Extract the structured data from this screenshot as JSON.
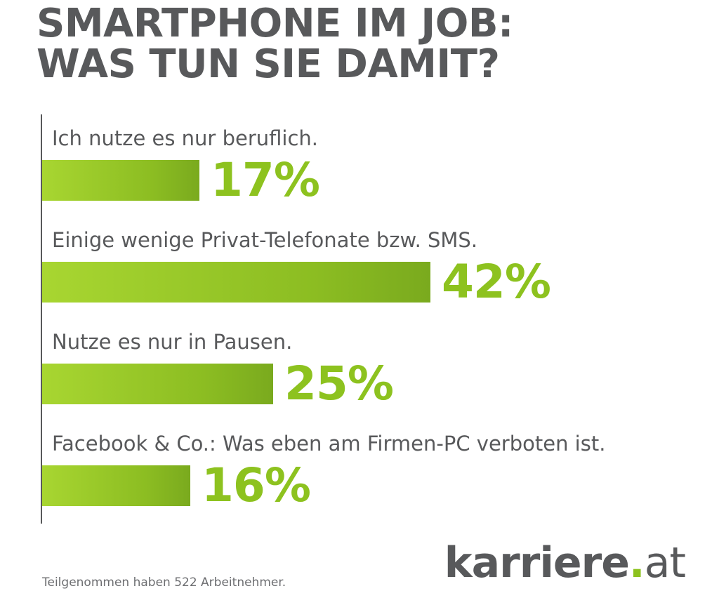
{
  "title_lines": [
    "SMARTPHONE IM JOB:",
    "WAS TUN SIE DAMIT?"
  ],
  "footnote": "Teilgenommen haben 522 Arbeitnehmer.",
  "brand": {
    "name": "karriere",
    "dot": ".",
    "tld": "at"
  },
  "colors": {
    "bar": "#8dc21f",
    "bar_light": "#a8d631",
    "text": "#58595b",
    "percent": "#8dc21f"
  },
  "chart_data": {
    "type": "bar",
    "orientation": "horizontal",
    "title": "SMARTPHONE IM JOB: WAS TUN SIE DAMIT?",
    "xlabel": "",
    "ylabel": "",
    "grid": false,
    "legend": "none",
    "xlim": [
      0,
      42
    ],
    "unit": "%",
    "categories": [
      "Ich nutze es nur beruflich.",
      "Einige wenige Privat-Telefonate bzw. SMS.",
      "Nutze es nur in Pausen.",
      "Facebook & Co.: Was eben am Firmen-PC verboten ist."
    ],
    "values": [
      17,
      42,
      25,
      16
    ],
    "data_labels": [
      "17%",
      "42%",
      "25%",
      "16%"
    ]
  }
}
